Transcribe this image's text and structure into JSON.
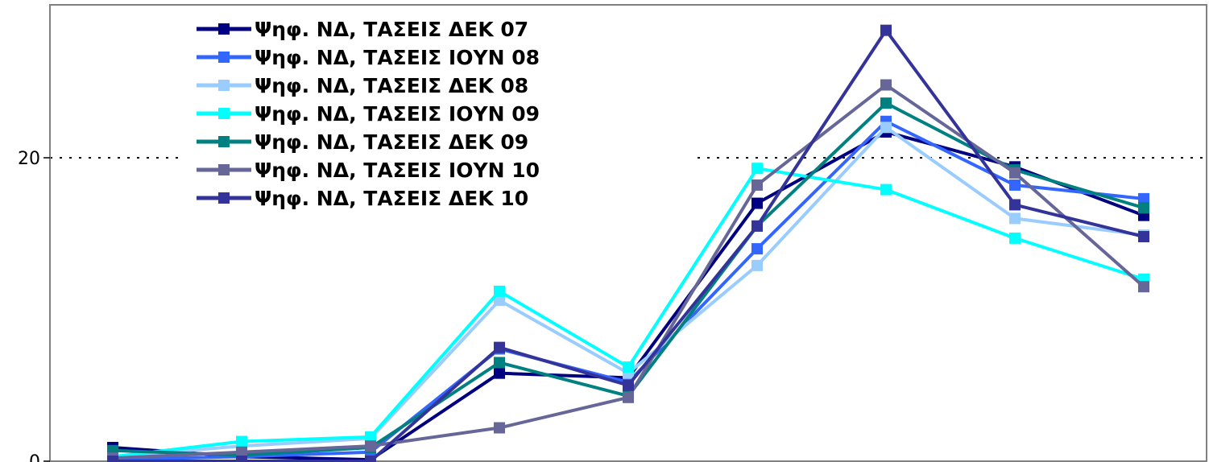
{
  "chart_data": {
    "type": "line",
    "x": [
      1,
      2,
      3,
      4,
      5,
      6,
      7,
      8,
      9
    ],
    "ylim": [
      0,
      28
    ],
    "yticks": [
      0,
      20
    ],
    "xlabel": "",
    "ylabel": "",
    "grid": "horizontal dotted at y=20",
    "legend_position": "top-left",
    "series": [
      {
        "name": "Ψηφ. ΝΔ, ΤΑΣΕΙΣ ΔΕΚ 07",
        "color": "#000080",
        "values": [
          0.9,
          0.3,
          0.1,
          5.8,
          5.5,
          17.0,
          21.7,
          19.4,
          16.2
        ]
      },
      {
        "name": "Ψηφ. ΝΔ, ΤΑΣΕΙΣ ΙΟΥΝ 08",
        "color": "#3366FF",
        "values": [
          0.1,
          0.3,
          0.6,
          7.4,
          5.2,
          14.0,
          22.4,
          18.2,
          17.3
        ]
      },
      {
        "name": "Ψηφ. ΝΔ, ΤΑΣΕΙΣ ΔΕΚ 08",
        "color": "#99CCFF",
        "values": [
          0.3,
          1.0,
          1.5,
          10.6,
          5.8,
          12.9,
          22.0,
          16.0,
          14.9
        ]
      },
      {
        "name": "Ψηφ. ΝΔ, ΤΑΣΕΙΣ ΙΟΥΝ 09",
        "color": "#00FFFF",
        "values": [
          0.3,
          1.3,
          1.6,
          11.2,
          6.2,
          19.3,
          17.9,
          14.7,
          12.0
        ]
      },
      {
        "name": "Ψηφ. ΝΔ, ΤΑΣΕΙΣ ΔΕΚ 09",
        "color": "#008080",
        "values": [
          0.7,
          0.4,
          0.9,
          6.5,
          4.3,
          15.5,
          23.6,
          19.2,
          16.7
        ]
      },
      {
        "name": "Ψηφ. ΝΔ, ΤΑΣΕΙΣ ΙΟΥΝ 10",
        "color": "#666699",
        "values": [
          0.2,
          0.6,
          1.0,
          2.2,
          4.2,
          18.2,
          24.8,
          19.0,
          11.5
        ]
      },
      {
        "name": "Ψηφ. ΝΔ, ΤΑΣΕΙΣ ΔΕΚ 10",
        "color": "#333399",
        "values": [
          0.0,
          0.0,
          0.0,
          7.5,
          5.0,
          15.5,
          28.4,
          16.9,
          14.8
        ]
      }
    ]
  }
}
